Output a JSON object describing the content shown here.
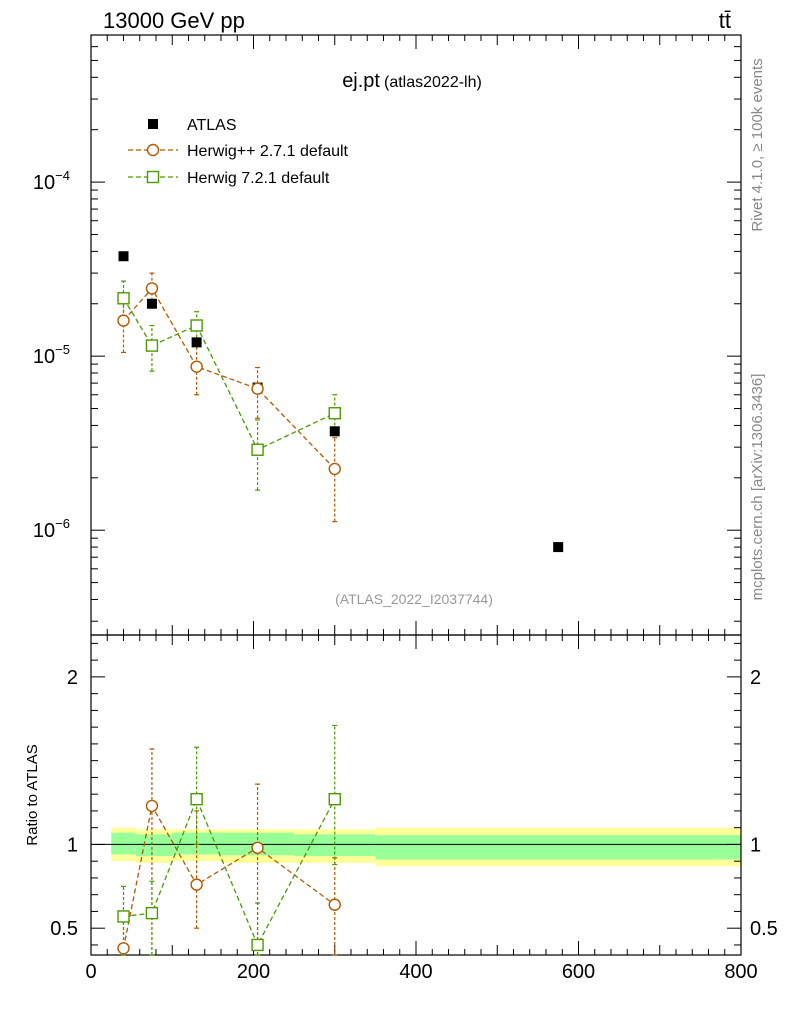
{
  "header": {
    "energy_label": "13000 GeV pp",
    "process_label": "tt̄"
  },
  "side_labels": {
    "rivet": "Rivet 4.1.0, ≥ 100k events",
    "mcplots": "mcplots.cern.ch [arXiv:1306.3436]"
  },
  "chart_data": [
    {
      "type": "scatter",
      "panel": "main",
      "title": "ej.pt",
      "subtitle": "(atlas2022-lh)",
      "analysis_label": "(ATLAS_2022_I2037744)",
      "yscale": "log",
      "xlim": [
        0,
        800
      ],
      "ylim": [
        2.5e-07,
        0.0007
      ],
      "y_ticks": [
        {
          "value": 1e-06,
          "label_base": "10",
          "label_exp": "−6"
        },
        {
          "value": 1e-05,
          "label_base": "10",
          "label_exp": "−5"
        },
        {
          "value": 0.0001,
          "label_base": "10",
          "label_exp": "−4"
        }
      ],
      "legend": [
        {
          "label": "ATLAS",
          "color": "#000000",
          "marker": "filled-square"
        },
        {
          "label": "Herwig++ 2.7.1 default",
          "color": "#b35900",
          "marker": "open-circle"
        },
        {
          "label": "Herwig 7.2.1 default",
          "color": "#4d9900",
          "marker": "open-square"
        }
      ],
      "series": [
        {
          "name": "ATLAS",
          "color": "#000000",
          "x": [
            40,
            75,
            130,
            205,
            300,
            575
          ],
          "y": [
            3.75e-05,
            2e-05,
            1.2e-05,
            6.6e-06,
            3.7e-06,
            8e-07
          ]
        },
        {
          "name": "Herwig++ 2.7.1 default",
          "color": "#b35900",
          "x": [
            40,
            75,
            130,
            205,
            300
          ],
          "y": [
            1.6e-05,
            2.45e-05,
            8.7e-06,
            6.5e-06,
            2.25e-06
          ],
          "err_low": [
            1.05e-05,
            1.95e-05,
            6e-06,
            4.4e-06,
            1.12e-06
          ],
          "err_high": [
            2.2e-05,
            3e-05,
            1.15e-05,
            8.6e-06,
            3.4e-06
          ]
        },
        {
          "name": "Herwig 7.2.1 default",
          "color": "#4d9900",
          "x": [
            40,
            75,
            130,
            205,
            300
          ],
          "y": [
            2.15e-05,
            1.15e-05,
            1.5e-05,
            2.9e-06,
            4.7e-06
          ],
          "err_low": [
            1.55e-05,
            8.2e-06,
            1.2e-05,
            1.7e-06,
            3.5e-06
          ],
          "err_high": [
            2.7e-05,
            1.5e-05,
            1.8e-05,
            4.3e-06,
            6e-06
          ]
        }
      ]
    },
    {
      "type": "scatter",
      "panel": "ratio",
      "ylabel": "Ratio to ATLAS",
      "xlim": [
        0,
        800
      ],
      "ylim": [
        0.34,
        2.25
      ],
      "x_ticks": [
        0,
        200,
        400,
        600,
        800
      ],
      "y_ticks": [
        0.5,
        1,
        2
      ],
      "y_tick_labels": [
        "0.5",
        "1",
        "2"
      ],
      "x_tick_labels": [
        "0",
        "200",
        "400",
        "600",
        "800"
      ],
      "bands": [
        {
          "x0": 25,
          "x1": 55,
          "inner": [
            0.94,
            1.07
          ],
          "outer": [
            0.9,
            1.1
          ]
        },
        {
          "x0": 55,
          "x1": 100,
          "inner": [
            0.93,
            1.06
          ],
          "outer": [
            0.89,
            1.09
          ]
        },
        {
          "x0": 100,
          "x1": 160,
          "inner": [
            0.94,
            1.07
          ],
          "outer": [
            0.9,
            1.09
          ]
        },
        {
          "x0": 160,
          "x1": 250,
          "inner": [
            0.935,
            1.07
          ],
          "outer": [
            0.89,
            1.09
          ]
        },
        {
          "x0": 250,
          "x1": 350,
          "inner": [
            0.93,
            1.06
          ],
          "outer": [
            0.89,
            1.09
          ]
        },
        {
          "x0": 350,
          "x1": 800,
          "inner": [
            0.91,
            1.055
          ],
          "outer": [
            0.87,
            1.1
          ]
        }
      ],
      "series": [
        {
          "name": "Herwig++ 2.7.1 default",
          "color": "#b35900",
          "x": [
            40,
            75,
            130,
            205,
            300
          ],
          "y": [
            0.38,
            1.23,
            0.76,
            0.98,
            0.64
          ],
          "err_low": [
            0.34,
            0.34,
            0.5,
            0.34,
            0.34
          ],
          "err_high": [
            0.58,
            1.57,
            1.2,
            1.36,
            0.92
          ]
        },
        {
          "name": "Herwig 7.2.1 default",
          "color": "#4d9900",
          "x": [
            40,
            75,
            130,
            205,
            300
          ],
          "y": [
            0.57,
            0.59,
            1.27,
            0.4,
            1.27
          ],
          "err_low": [
            0.34,
            0.34,
            1.0,
            0.34,
            0.88
          ],
          "err_high": [
            0.75,
            0.78,
            1.58,
            0.65,
            1.71
          ]
        }
      ]
    }
  ]
}
